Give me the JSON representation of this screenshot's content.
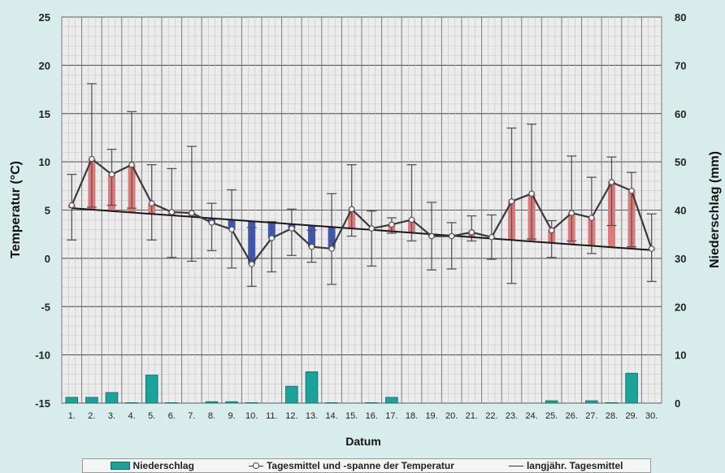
{
  "chart_data": {
    "type": "combo-bar-line",
    "xlabel": "Datum",
    "ylabel_left": "Temperatur (°C)",
    "ylabel_right": "Niederschlag (mm)",
    "ylim_left": [
      -15,
      25
    ],
    "ylim_right": [
      0,
      80
    ],
    "y_ticks_left": [
      "25",
      "20",
      "15",
      "10",
      "5",
      "0",
      "-5",
      "-10",
      "-15"
    ],
    "y_ticks_right": [
      "80",
      "70",
      "60",
      "50",
      "40",
      "30",
      "20",
      "10",
      "0"
    ],
    "categories": [
      "1.",
      "2.",
      "3.",
      "4.",
      "5.",
      "6.",
      "7.",
      "8.",
      "9.",
      "10.",
      "11.",
      "12.",
      "13.",
      "14.",
      "15.",
      "16.",
      "17.",
      "18.",
      "19.",
      "20.",
      "21.",
      "22.",
      "23.",
      "24.",
      "25.",
      "26.",
      "27.",
      "28.",
      "29.",
      "30."
    ],
    "grid": true,
    "legend_position": "bottom",
    "series": [
      {
        "name": "Niederschlag",
        "axis": "right",
        "kind": "bar",
        "color": "#1aa39b",
        "values": [
          1.2,
          1.2,
          2.2,
          0.1,
          5.8,
          0.1,
          0,
          0.3,
          0.3,
          0.1,
          0,
          3.5,
          6.5,
          0.1,
          0,
          0.1,
          1.2,
          0,
          0,
          0,
          0,
          0,
          0,
          0,
          0.5,
          0,
          0.5,
          0.1,
          6.2,
          0
        ]
      },
      {
        "name": "Tagesmittel und -spanne der Temperatur",
        "axis": "left",
        "kind": "line",
        "mean": [
          5.5,
          10.3,
          8.7,
          9.7,
          5.7,
          4.8,
          4.7,
          3.7,
          3.0,
          -0.6,
          2.1,
          3.1,
          1.2,
          1.0,
          5.1,
          3.1,
          3.5,
          4.0,
          2.3,
          2.3,
          2.7,
          2.2,
          5.9,
          6.7,
          2.9,
          4.7,
          4.2,
          7.9,
          7.0,
          1.0
        ],
        "max": [
          8.7,
          18.1,
          11.3,
          15.2,
          9.7,
          9.3,
          11.6,
          5.7,
          7.1,
          3.2,
          3.8,
          5.1,
          2.9,
          6.7,
          9.7,
          4.9,
          4.2,
          9.7,
          5.8,
          3.7,
          4.4,
          4.5,
          13.5,
          13.9,
          3.9,
          10.6,
          8.4,
          10.5,
          8.9,
          4.6
        ],
        "min": [
          1.9,
          5.3,
          5.5,
          5.2,
          1.9,
          0.1,
          -0.3,
          0.8,
          -1.0,
          -2.9,
          -1.4,
          0.3,
          -0.4,
          -2.7,
          2.3,
          -0.8,
          2.6,
          1.8,
          -1.2,
          -1.1,
          1.8,
          -0.1,
          -2.6,
          2.0,
          0.1,
          1.8,
          0.5,
          3.4,
          1.2,
          -2.4
        ]
      },
      {
        "name": "langjähr. Tagesmittel",
        "axis": "left",
        "kind": "line",
        "values": [
          5.2,
          5.05,
          4.9,
          4.75,
          4.6,
          4.45,
          4.3,
          4.15,
          4.0,
          3.85,
          3.7,
          3.55,
          3.4,
          3.25,
          3.1,
          2.95,
          2.8,
          2.65,
          2.5,
          2.35,
          2.2,
          2.05,
          1.9,
          1.75,
          1.6,
          1.45,
          1.3,
          1.15,
          1.0,
          0.85
        ]
      }
    ],
    "colors": {
      "warm": "#e07a7a",
      "cold": "#3b59b8",
      "precip": "#1aa39b",
      "grid": "#4a4a4a"
    }
  },
  "legend": {
    "precip": "Niederschlag",
    "temp": "Tagesmittel und -spanne der Temperatur",
    "longterm": "langjähr. Tagesmittel"
  }
}
